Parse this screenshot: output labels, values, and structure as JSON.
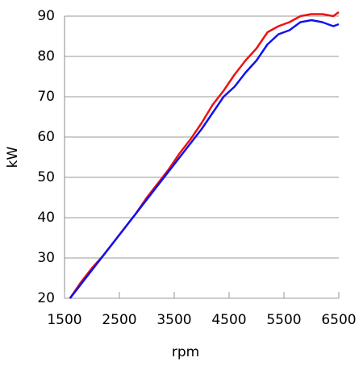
{
  "chart_data": {
    "type": "line",
    "x_label": "rpm",
    "y_label": "kW",
    "x": [
      1600,
      1800,
      2000,
      2200,
      2400,
      2600,
      2800,
      3000,
      3200,
      3400,
      3600,
      3800,
      4000,
      4200,
      4400,
      4600,
      4800,
      5000,
      5200,
      5400,
      5600,
      5800,
      6000,
      6200,
      6400,
      6500
    ],
    "series": [
      {
        "color": "#ee1111",
        "values": [
          20,
          24,
          27.5,
          30.5,
          34,
          37.5,
          41,
          45,
          48.5,
          52,
          56,
          59.5,
          63.5,
          68,
          71.5,
          75.5,
          79,
          82,
          86,
          87.5,
          88.5,
          90,
          90.5,
          90.5,
          90,
          91
        ]
      },
      {
        "color": "#1111ee",
        "values": [
          20,
          23.5,
          27,
          30.5,
          34,
          37.5,
          41,
          44.5,
          48,
          51.5,
          55,
          58.5,
          62,
          66,
          70,
          72.5,
          76,
          79,
          83,
          85.5,
          86.5,
          88.5,
          89,
          88.5,
          87.5,
          88
        ]
      }
    ],
    "xlim": [
      1500,
      6500
    ],
    "xticks": [
      1500,
      2500,
      3500,
      4500,
      5500,
      6500
    ],
    "ylim": [
      20,
      90
    ],
    "yticks": [
      20,
      30,
      40,
      50,
      60,
      70,
      80,
      90
    ],
    "grid": true
  }
}
